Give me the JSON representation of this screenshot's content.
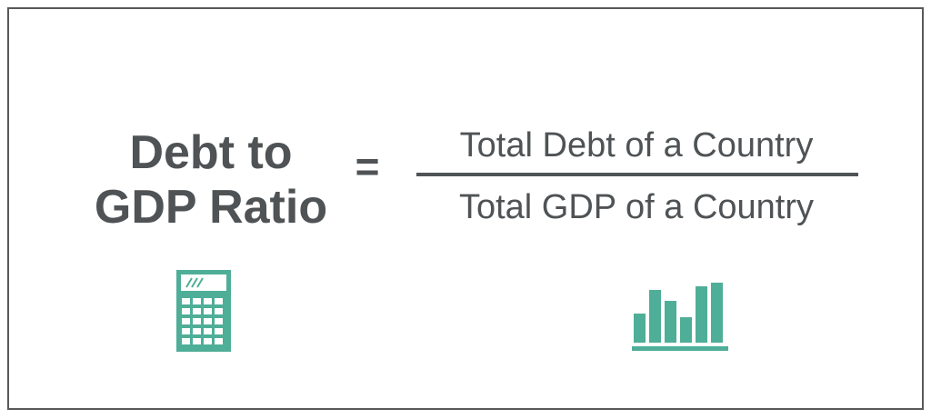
{
  "formula": {
    "lhs_line1": "Debt to",
    "lhs_line2": "GDP Ratio",
    "equals": "=",
    "numerator": "Total Debt of a Country",
    "denominator": "Total GDP of a Country"
  },
  "icons": {
    "calculator": "calculator-icon",
    "bar_chart": "bar-chart-icon"
  },
  "colors": {
    "text": "#4f5355",
    "accent": "#4fae97",
    "border": "#595959"
  }
}
